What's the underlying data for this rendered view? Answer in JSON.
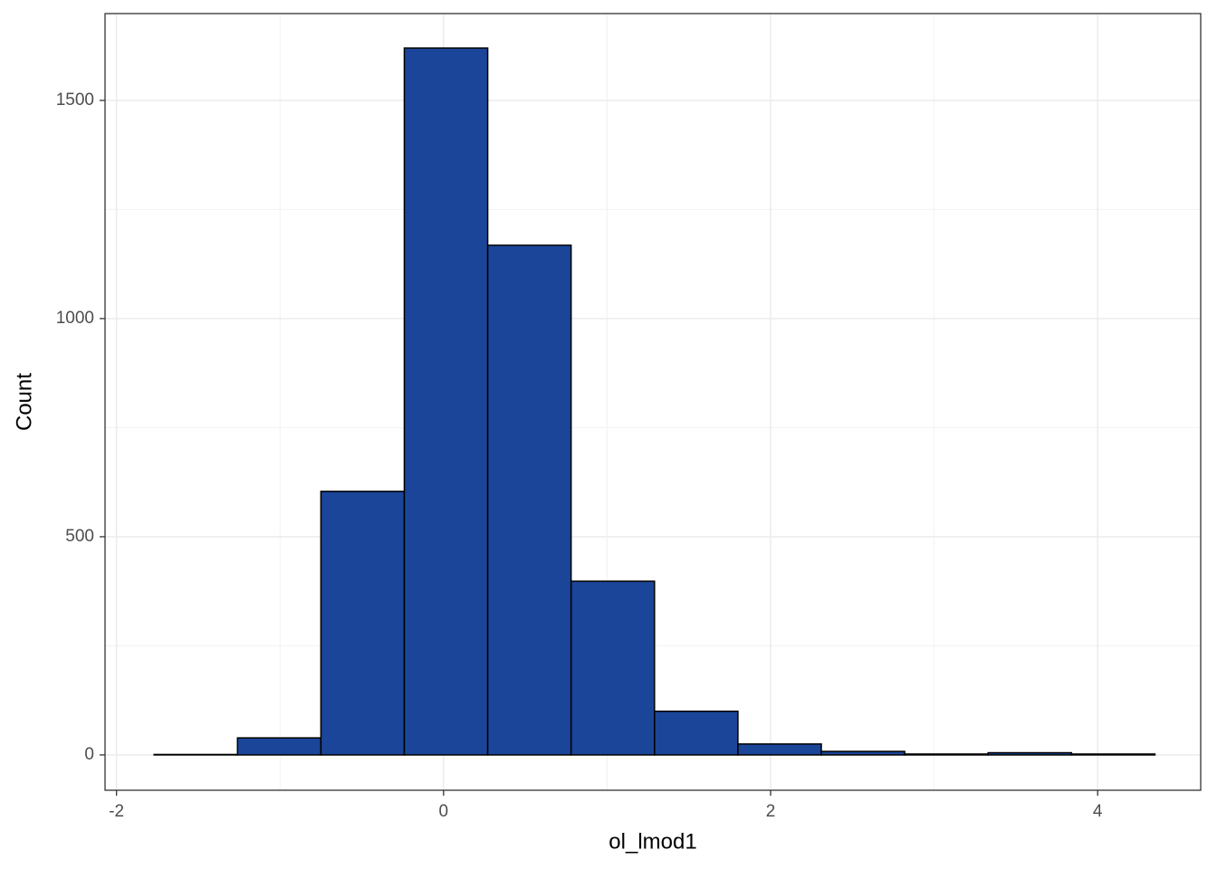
{
  "chart_data": {
    "type": "histogram",
    "x_label": "ol_lmod1",
    "y_label": "Count",
    "bins": [
      -1.77,
      -1.26,
      -0.75,
      -0.24,
      0.27,
      0.78,
      1.29,
      1.8,
      2.31,
      2.82,
      3.33,
      3.84,
      4.35
    ],
    "values": [
      1,
      39,
      604,
      1620,
      1168,
      398,
      100,
      25,
      8,
      2,
      5,
      2
    ],
    "color": "#1a4599",
    "edge_color": "#000000",
    "xlim": [
      -2.07,
      4.63
    ],
    "xticks": [
      -2,
      0,
      2,
      4
    ],
    "ylim": [
      -81,
      1699
    ],
    "yticks": [
      0,
      500,
      1000,
      1500
    ],
    "grid": true
  }
}
